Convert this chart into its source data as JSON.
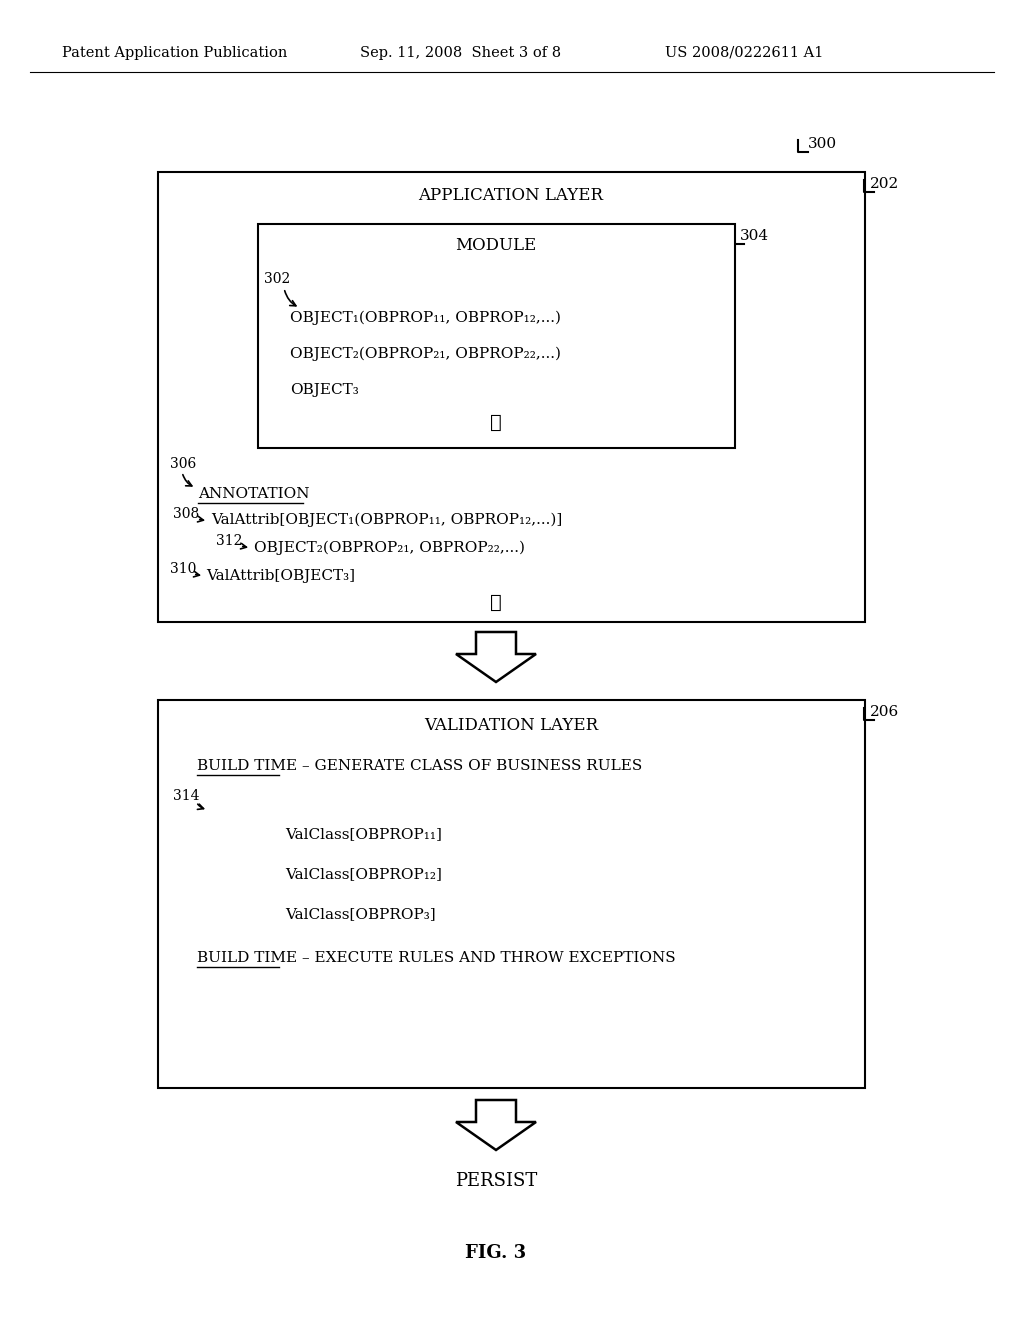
{
  "bg_color": "#ffffff",
  "header_text": "Patent Application Publication",
  "header_date": "Sep. 11, 2008  Sheet 3 of 8",
  "header_patent": "US 2008/0222611 A1",
  "fig_label": "FIG. 3",
  "ref_300": "300",
  "ref_202": "202",
  "ref_304": "304",
  "ref_302": "302",
  "ref_306": "306",
  "ref_308": "308",
  "ref_312": "312",
  "ref_310": "310",
  "ref_206": "206",
  "ref_314": "314",
  "app_layer_title": "APPLICATION LAYER",
  "module_title": "MODULE",
  "obj1_line": "OBJECT₁(OBPROP₁₁, OBPROP₁₂,...)",
  "obj2_line": "OBJECT₂(OBPROP₂₁, OBPROP₂₂,...)",
  "obj3_line": "OBJECT₃",
  "annotation_label": "ANNOTATION",
  "val_attrib1": "ValAttrib[OBJECT₁(OBPROP₁₁, OBPROP₁₂,...)]",
  "obj2_annot": "OBJECT₂(OBPROP₂₁, OBPROP₂₂,...)",
  "val_attrib3": "ValAttrib[OBJECT₃]",
  "val_layer_title": "VALIDATION LAYER",
  "build_time1": "BUILD TIME – GENERATE CLASS OF BUSINESS RULES",
  "valclass1": "ValClass[OBPROP₁₁]",
  "valclass2": "ValClass[OBPROP₁₂]",
  "valclass3": "ValClass[OBPROP₃]",
  "build_time2": "BUILD TIME – EXECUTE RULES AND THROW EXCEPTIONS",
  "persist_label": "PERSIST"
}
